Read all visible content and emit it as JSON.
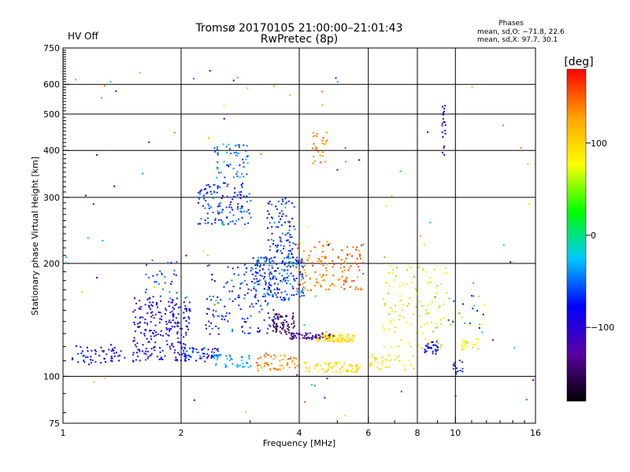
{
  "header": {
    "title": "Tromsø 20170105 21:00:00–21:01:43",
    "subtitle": "RwPretec (8p)",
    "status": "HV Off",
    "status_color": "#cc0000",
    "phase_heading": "Phases",
    "phase_o": "mean, sd,O: −71.8, 22.6",
    "phase_x": "mean, sd,X:  97.7, 30.1"
  },
  "chart_data": {
    "type": "scatter",
    "title": "Tromsø 20170105 21:00:00–21:01:43",
    "subtitle": "RwPretec (8p)",
    "xlabel": "Frequency [MHz]",
    "ylabel": "Stationary phase Virtual Height [km]",
    "x_scale": "log",
    "y_scale": "log",
    "xlim": [
      1,
      16
    ],
    "ylim": [
      75,
      750
    ],
    "x_ticks": [
      1,
      2,
      4,
      6,
      8,
      10,
      16
    ],
    "x_tick_labels": [
      "1",
      "2",
      "4",
      "6",
      "8",
      "10",
      "16"
    ],
    "y_ticks": [
      75,
      100,
      200,
      300,
      400,
      500,
      600,
      750
    ],
    "y_tick_labels": [
      "75",
      "100",
      "200",
      "300",
      "400",
      "500",
      "600",
      "750"
    ],
    "grid": true,
    "colorbar": {
      "label": "[deg]",
      "range": [
        -180,
        180
      ],
      "ticks": [
        100,
        0,
        -100
      ],
      "tick_labels": [
        "100",
        "0",
        "−100"
      ],
      "colors": [
        "#000000",
        "#5a00a0",
        "#0000ff",
        "#00c8ff",
        "#00ff00",
        "#ffff00",
        "#ffa000",
        "#ff0000"
      ]
    },
    "clusters": [
      {
        "f": [
          1.05,
          1.4
        ],
        "h": [
          108,
          122
        ],
        "phase": [
          -100,
          -60
        ],
        "n": 55
      },
      {
        "f": [
          1.5,
          2.1
        ],
        "h": [
          110,
          165
        ],
        "phase": [
          -120,
          -60
        ],
        "n": 240
      },
      {
        "f": [
          1.6,
          1.95
        ],
        "h": [
          160,
          205
        ],
        "phase": [
          -75,
          -40
        ],
        "n": 30
      },
      {
        "f": [
          2.0,
          2.5
        ],
        "h": [
          110,
          120
        ],
        "phase": [
          -100,
          -40
        ],
        "n": 60
      },
      {
        "f": [
          2.2,
          3.0
        ],
        "h": [
          255,
          330
        ],
        "phase": [
          -90,
          -40
        ],
        "n": 130
      },
      {
        "f": [
          2.4,
          2.95
        ],
        "h": [
          340,
          420
        ],
        "phase": [
          -70,
          -20
        ],
        "n": 55
      },
      {
        "f": [
          2.3,
          3.5
        ],
        "h": [
          130,
          200
        ],
        "phase": [
          -110,
          -40
        ],
        "n": 150
      },
      {
        "f": [
          2.4,
          3.0
        ],
        "h": [
          106,
          115
        ],
        "phase": [
          -50,
          -20
        ],
        "n": 40
      },
      {
        "f": [
          3.0,
          4.1
        ],
        "h": [
          160,
          210
        ],
        "phase": [
          -90,
          -30
        ],
        "n": 190
      },
      {
        "f": [
          3.3,
          3.9
        ],
        "h": [
          210,
          300
        ],
        "phase": [
          -100,
          -40
        ],
        "n": 90
      },
      {
        "f": [
          3.4,
          3.9
        ],
        "h": [
          130,
          148
        ],
        "phase": [
          -170,
          -130
        ],
        "n": 70
      },
      {
        "f": [
          3.7,
          4.8
        ],
        "h": [
          126,
          131
        ],
        "phase": [
          -150,
          -100
        ],
        "n": 70
      },
      {
        "f": [
          4.4,
          5.5
        ],
        "h": [
          124,
          130
        ],
        "phase": [
          80,
          110
        ],
        "n": 80
      },
      {
        "f": [
          3.9,
          4.9
        ],
        "h": [
          170,
          230
        ],
        "phase": [
          120,
          160
        ],
        "n": 80
      },
      {
        "f": [
          5.0,
          5.8
        ],
        "h": [
          170,
          230
        ],
        "phase": [
          130,
          165
        ],
        "n": 60
      },
      {
        "f": [
          4.3,
          4.7
        ],
        "h": [
          370,
          450
        ],
        "phase": [
          120,
          160
        ],
        "n": 28
      },
      {
        "f": [
          3.1,
          4.0
        ],
        "h": [
          104,
          115
        ],
        "phase": [
          110,
          160
        ],
        "n": 60
      },
      {
        "f": [
          4.1,
          5.7
        ],
        "h": [
          103,
          110
        ],
        "phase": [
          80,
          110
        ],
        "n": 70
      },
      {
        "f": [
          6.0,
          7.8
        ],
        "h": [
          104,
          115
        ],
        "phase": [
          70,
          110
        ],
        "n": 40
      },
      {
        "f": [
          6.5,
          9.5
        ],
        "h": [
          118,
          200
        ],
        "phase": [
          40,
          110
        ],
        "n": 110
      },
      {
        "f": [
          8.3,
          9.0
        ],
        "h": [
          115,
          125
        ],
        "phase": [
          -90,
          -70
        ],
        "n": 30
      },
      {
        "f": [
          9.2,
          9.4
        ],
        "h": [
          380,
          540
        ],
        "phase": [
          -120,
          -70
        ],
        "n": 20
      },
      {
        "f": [
          10.3,
          11.4
        ],
        "h": [
          118,
          128
        ],
        "phase": [
          70,
          100
        ],
        "n": 22
      },
      {
        "f": [
          9.6,
          11.8
        ],
        "h": [
          130,
          165
        ],
        "phase": [
          -130,
          110
        ],
        "n": 22
      },
      {
        "f": [
          9.8,
          10.4
        ],
        "h": [
          100,
          112
        ],
        "phase": [
          -110,
          -60
        ],
        "n": 14
      },
      {
        "f": [
          1.0,
          16.0
        ],
        "h": [
          78,
          680
        ],
        "phase": [
          -140,
          150
        ],
        "n": 110
      }
    ]
  }
}
